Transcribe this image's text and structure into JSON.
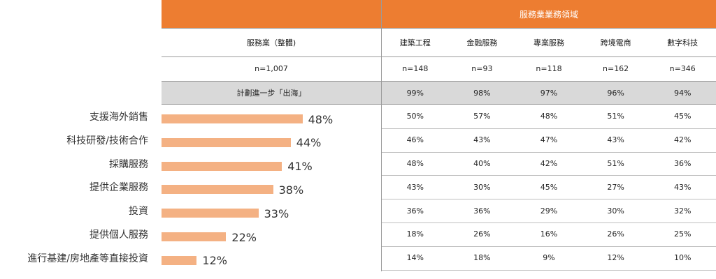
{
  "header": {
    "group_title": "服務業業務領域",
    "overall_title": "服務業（整體)",
    "overall_n": "n=1,007",
    "sector_names": [
      "建築工程",
      "金融服務",
      "專業服務",
      "跨境電商",
      "數字科技"
    ],
    "sector_n": [
      "n=148",
      "n=93",
      "n=118",
      "n=162",
      "n=346"
    ],
    "plan_label": "計劃進一步「出海」",
    "plan_values": [
      "99%",
      "98%",
      "97%",
      "96%",
      "94%"
    ]
  },
  "colors": {
    "header_orange": "#ED7D31",
    "bar_orange": "#F4B183",
    "grey_band": "#D9D9D9"
  },
  "chart_data": {
    "type": "bar",
    "orientation": "horizontal",
    "categories": [
      "支援海外銷售",
      "科技研發/技術合作",
      "採購服務",
      "提供企業服務",
      "投資",
      "提供個人服務",
      "進行基建/房地產等直接投資"
    ],
    "values": [
      48,
      44,
      41,
      38,
      33,
      22,
      12
    ],
    "value_labels": [
      "48%",
      "44%",
      "41%",
      "38%",
      "33%",
      "22%",
      "12%"
    ],
    "xlim": [
      0,
      100
    ]
  },
  "table": {
    "rows": [
      [
        "50%",
        "57%",
        "48%",
        "51%",
        "45%"
      ],
      [
        "46%",
        "43%",
        "47%",
        "43%",
        "42%"
      ],
      [
        "48%",
        "40%",
        "42%",
        "51%",
        "36%"
      ],
      [
        "43%",
        "30%",
        "45%",
        "27%",
        "43%"
      ],
      [
        "36%",
        "36%",
        "29%",
        "30%",
        "32%"
      ],
      [
        "18%",
        "26%",
        "16%",
        "26%",
        "25%"
      ],
      [
        "14%",
        "18%",
        "9%",
        "12%",
        "10%"
      ]
    ]
  }
}
